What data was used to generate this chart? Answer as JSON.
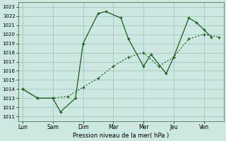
{
  "xlabel": "Pression niveau de la mer( hPa )",
  "background_color": "#cce8e0",
  "grid_color": "#99bfb8",
  "line_color": "#1a5c1a",
  "x_labels": [
    "Lun",
    "Sam",
    "Dim",
    "Mar",
    "Mer",
    "Jeu",
    "Ven"
  ],
  "ylim": [
    1010.5,
    1023.5
  ],
  "yticks": [
    1011,
    1012,
    1013,
    1014,
    1015,
    1016,
    1017,
    1018,
    1019,
    1020,
    1021,
    1022,
    1023
  ],
  "s1x": [
    0,
    0.5,
    1.0,
    1.25,
    1.75,
    2.0,
    2.5,
    2.75,
    3.25,
    3.5,
    4.0,
    4.25,
    4.75,
    5.0,
    5.5,
    5.75,
    6.0,
    6.25
  ],
  "s1y": [
    1014.0,
    1013.0,
    1013.0,
    1011.5,
    1013.0,
    1019.0,
    1022.3,
    1022.5,
    1021.8,
    1019.5,
    1016.5,
    1017.8,
    1015.7,
    1017.5,
    1021.8,
    1021.3,
    1020.5,
    1019.7
  ],
  "s2x": [
    0,
    0.5,
    1.0,
    1.5,
    2.0,
    2.5,
    3.0,
    3.5,
    4.0,
    4.5,
    5.0,
    5.5,
    6.0,
    6.5
  ],
  "s2y": [
    1014.0,
    1013.0,
    1013.0,
    1013.2,
    1014.2,
    1015.2,
    1016.5,
    1017.5,
    1018.0,
    1016.5,
    1017.5,
    1019.5,
    1020.0,
    1019.7
  ]
}
